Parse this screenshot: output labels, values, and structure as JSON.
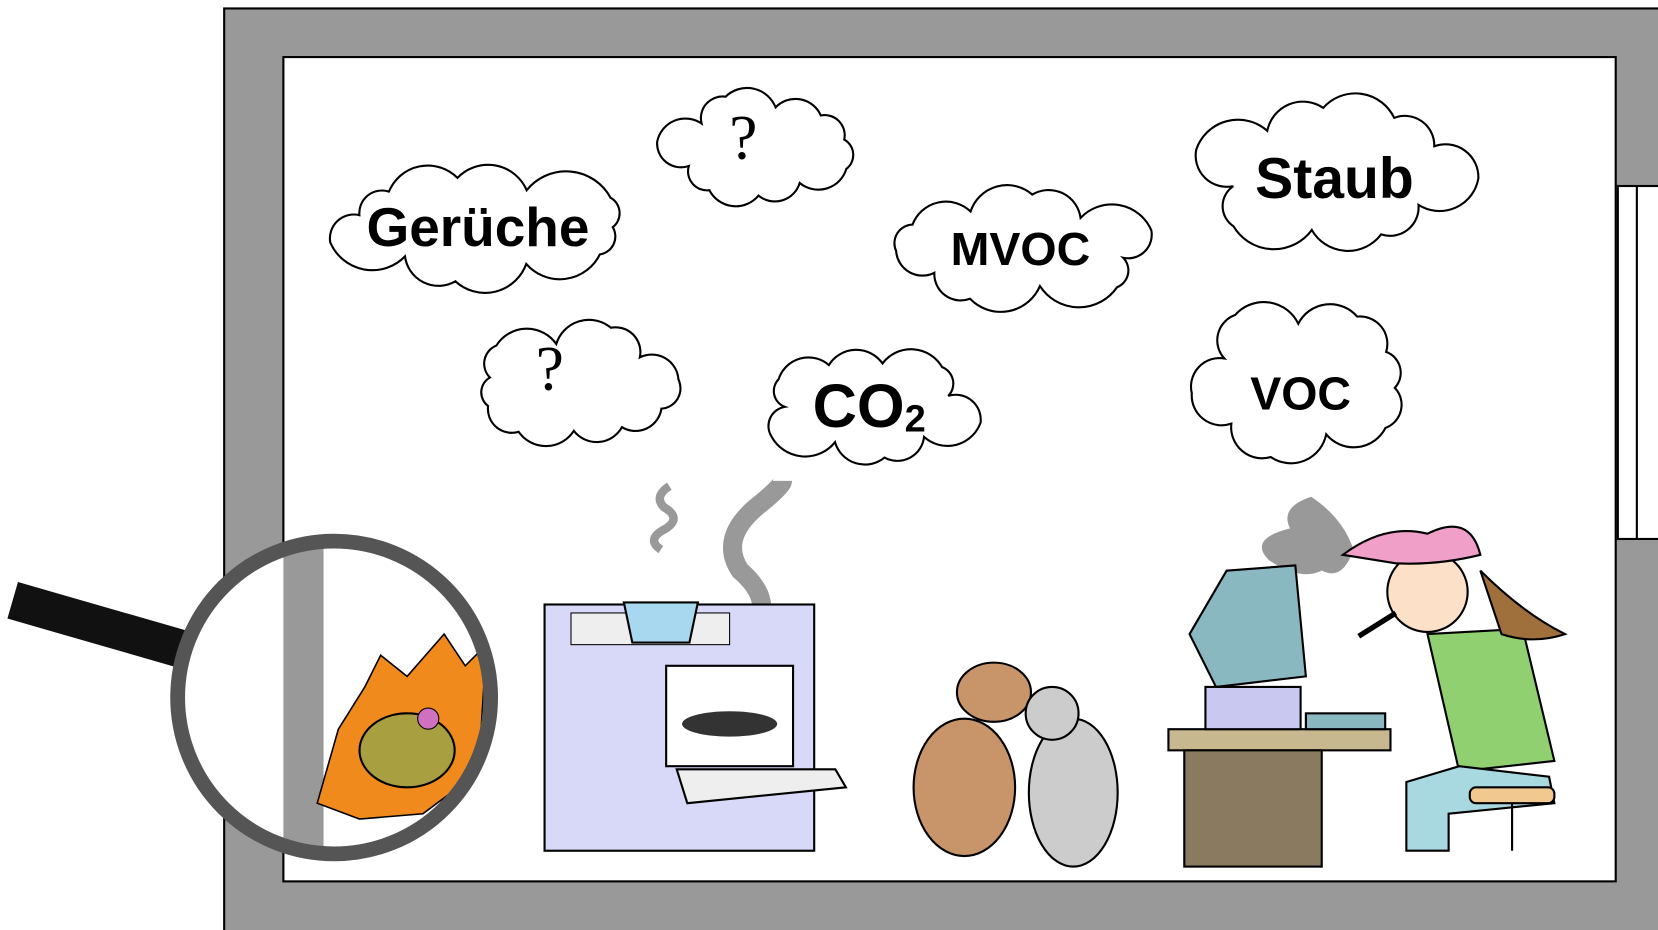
{
  "clouds": [
    {
      "label": "Gerüche"
    },
    {
      "label": "?"
    },
    {
      "label": "MVOC"
    },
    {
      "label": "Staub"
    },
    {
      "label": "?"
    },
    {
      "label": "CO",
      "subscript": "2"
    },
    {
      "label": "VOC"
    }
  ]
}
